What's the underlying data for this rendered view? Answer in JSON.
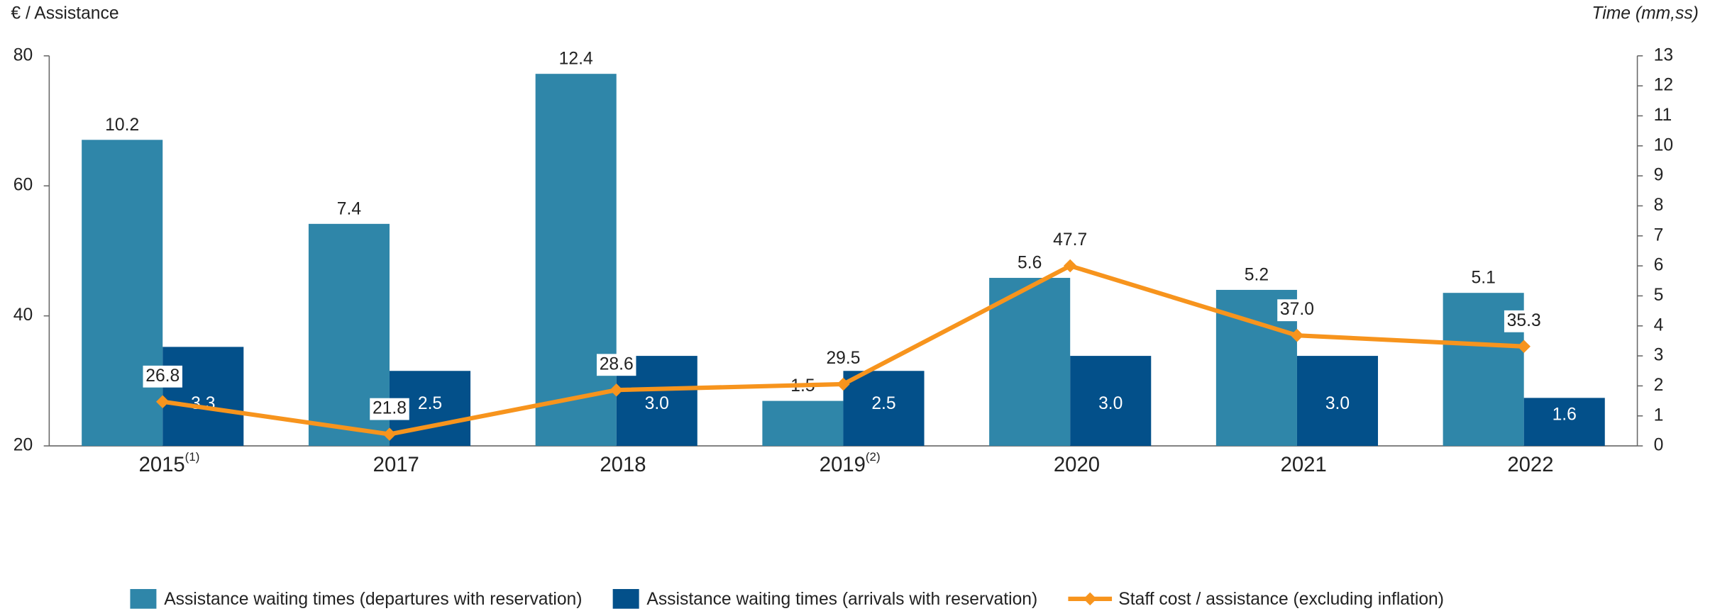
{
  "chart_data": {
    "type": "bar-line",
    "y_axis_label": "€ / Assistance",
    "y2_axis_label": "Time (mm,ss)",
    "categories": [
      "2015",
      "2017",
      "2018",
      "2019",
      "2020",
      "2021",
      "2022"
    ],
    "category_notes": [
      "(1)",
      null,
      null,
      "(2)",
      null,
      null,
      null
    ],
    "ylim": [
      20,
      80
    ],
    "yticks": [
      20,
      40,
      60,
      80
    ],
    "y2lim": [
      0,
      13
    ],
    "y2ticks": [
      0,
      1,
      2,
      3,
      4,
      5,
      6,
      7,
      8,
      9,
      10,
      11,
      12,
      13
    ],
    "series": [
      {
        "name": "Assistance waiting times (departures with reservation)",
        "type": "bar",
        "axis": "y2",
        "color": "#2f86a9",
        "values": [
          10.2,
          7.4,
          12.4,
          1.5,
          5.6,
          5.2,
          5.1
        ],
        "value_labels": [
          "10.2",
          "7.4",
          "12.4",
          "1.5",
          "5.6",
          "5.2",
          "5.1"
        ]
      },
      {
        "name": "Assistance waiting times (arrivals with reservation)",
        "type": "bar",
        "axis": "y2",
        "color": "#03508a",
        "values": [
          3.3,
          2.5,
          3.0,
          2.5,
          3.0,
          3.0,
          1.6
        ],
        "value_labels": [
          "3.3",
          "2.5",
          "3.0",
          "2.5",
          "3.0",
          "3.0",
          "1.6"
        ]
      },
      {
        "name": "Staff cost / assistance (excluding inflation)",
        "type": "line",
        "axis": "y",
        "color": "#f7941d",
        "values": [
          26.8,
          21.8,
          28.6,
          29.5,
          47.7,
          37.0,
          35.3
        ],
        "value_labels": [
          "26.8",
          "21.8",
          "28.6",
          "29.5",
          "47.7",
          "37.0",
          "35.3"
        ]
      }
    ]
  }
}
